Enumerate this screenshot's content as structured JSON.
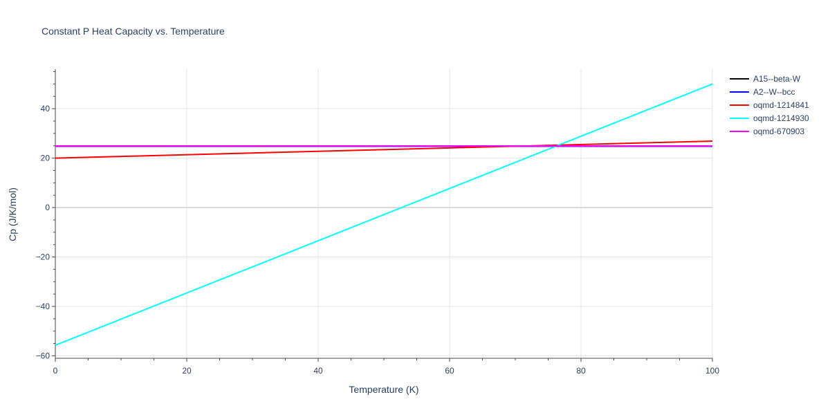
{
  "chart_data": {
    "type": "line",
    "title": "Constant P Heat Capacity vs. Temperature",
    "xlabel": "Temperature (K)",
    "ylabel": "Cp (J/K/mol)",
    "xlim": [
      0,
      100
    ],
    "ylim": [
      -61,
      56
    ],
    "x_ticks": [
      0,
      20,
      40,
      60,
      80,
      100
    ],
    "y_ticks": [
      -60,
      -40,
      -20,
      0,
      20,
      40
    ],
    "grid": true,
    "legend_position": "top-right",
    "series": [
      {
        "name": "A15--beta-W",
        "color": "#000000",
        "x": [
          0,
          100
        ],
        "y": [
          24.9,
          24.9
        ]
      },
      {
        "name": "A2--W--bcc",
        "color": "#0000ff",
        "x": [
          0,
          100
        ],
        "y": [
          24.8,
          24.8
        ]
      },
      {
        "name": "oqmd-1214841",
        "color": "#ff0000",
        "x": [
          0,
          100
        ],
        "y": [
          20.0,
          26.9
        ]
      },
      {
        "name": "oqmd-1214930",
        "color": "#00ffff",
        "x": [
          0,
          100
        ],
        "y": [
          -55.7,
          50.0
        ]
      },
      {
        "name": "oqmd-670903",
        "color": "#ff00ff",
        "x": [
          0,
          100
        ],
        "y": [
          24.9,
          24.9
        ]
      }
    ]
  }
}
